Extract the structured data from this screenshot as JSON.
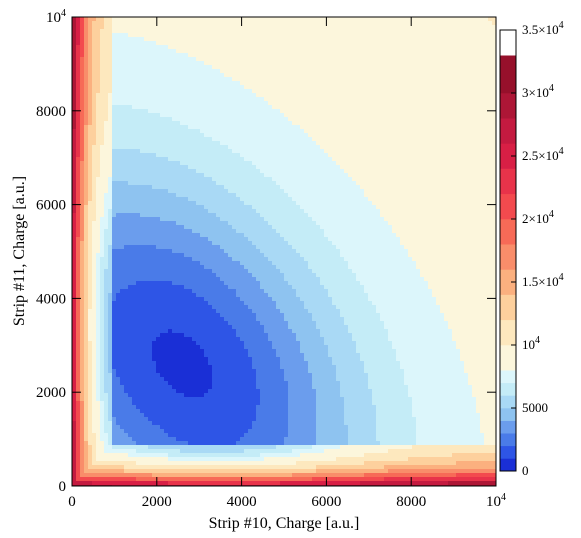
{
  "chart_data": {
    "type": "heatmap",
    "subtype": "filled-contour",
    "xlabel": "Strip #10, Charge [a.u.]",
    "ylabel": "Strip #11, Charge [a.u.]",
    "xlim": [
      0,
      10000
    ],
    "ylim": [
      0,
      10000
    ],
    "x_ticks": [
      {
        "value": 0,
        "label": "0"
      },
      {
        "value": 2000,
        "label": "2000"
      },
      {
        "value": 4000,
        "label": "4000"
      },
      {
        "value": 6000,
        "label": "6000"
      },
      {
        "value": 8000,
        "label": "8000"
      },
      {
        "value": 10000,
        "label": "10",
        "exp": "4"
      }
    ],
    "y_ticks": [
      {
        "value": 0,
        "label": "0"
      },
      {
        "value": 2000,
        "label": "2000"
      },
      {
        "value": 4000,
        "label": "4000"
      },
      {
        "value": 6000,
        "label": "6000"
      },
      {
        "value": 8000,
        "label": "8000"
      },
      {
        "value": 10000,
        "label": "10",
        "exp": "4"
      }
    ],
    "peak": {
      "x": 2600,
      "y": 2600
    },
    "colorbar": {
      "range": [
        0,
        35000
      ],
      "levels": [
        0,
        1000,
        2000,
        3000,
        4000,
        5000,
        6000,
        7000,
        8000,
        10000,
        12000,
        14000,
        16000,
        18000,
        20000,
        22000,
        24000,
        26000,
        28000,
        30000,
        33000,
        35000
      ],
      "colors": [
        "#1a2fd6",
        "#2e55e6",
        "#4a7be8",
        "#6b9ded",
        "#8ec3f0",
        "#a9d9f5",
        "#c4ecf7",
        "#dcf6fb",
        "#fcf6dc",
        "#fde8be",
        "#fdd09d",
        "#fbb07f",
        "#f98d6a",
        "#f76a57",
        "#f34a4e",
        "#e8334a",
        "#d81f45",
        "#c41a40",
        "#ad1636",
        "#96102b",
        "#ffffff"
      ],
      "ticks": [
        {
          "value": 0,
          "label": "0"
        },
        {
          "value": 5000,
          "label": "5000"
        },
        {
          "value": 10000,
          "label": "10",
          "exp": "4"
        },
        {
          "value": 15000,
          "label": "1.5×10",
          "exp": "4"
        },
        {
          "value": 20000,
          "label": "2×10",
          "exp": "4"
        },
        {
          "value": 25000,
          "label": "2.5×10",
          "exp": "4"
        },
        {
          "value": 30000,
          "label": "3×10",
          "exp": "4"
        },
        {
          "value": 35000,
          "label": "3.5×10",
          "exp": "4"
        }
      ]
    }
  }
}
